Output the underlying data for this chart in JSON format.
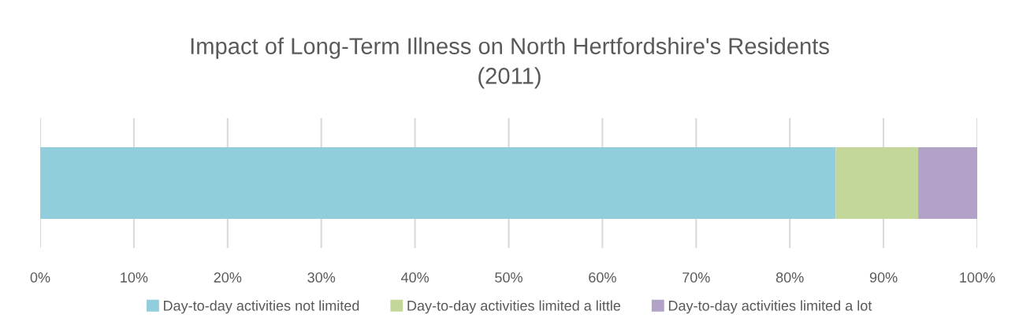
{
  "chart_data": {
    "type": "bar",
    "orientation": "horizontal",
    "stacked": true,
    "title": "Impact of Long-Term Illness on North Hertfordshire's Residents\n(2011)",
    "categories": [
      null
    ],
    "series": [
      {
        "name": "Day-to-day activities not limited",
        "color": "#92cddc",
        "values": [
          84.9
        ]
      },
      {
        "name": "Day-to-day activities limited a little",
        "color": "#c4d79b",
        "values": [
          8.8
        ]
      },
      {
        "name": "Day-to-day activities limited a lot",
        "color": "#b3a2c7",
        "values": [
          6.3
        ]
      }
    ],
    "xlim": [
      0,
      100
    ],
    "xticks": [
      {
        "value": 0,
        "label": "0%"
      },
      {
        "value": 10,
        "label": "10%"
      },
      {
        "value": 20,
        "label": "20%"
      },
      {
        "value": 30,
        "label": "30%"
      },
      {
        "value": 40,
        "label": "40%"
      },
      {
        "value": 50,
        "label": "50%"
      },
      {
        "value": 60,
        "label": "60%"
      },
      {
        "value": 70,
        "label": "70%"
      },
      {
        "value": 80,
        "label": "80%"
      },
      {
        "value": 90,
        "label": "90%"
      },
      {
        "value": 100,
        "label": "100%"
      }
    ],
    "grid": "x",
    "legend": "bottom",
    "tick_labels": "x"
  }
}
